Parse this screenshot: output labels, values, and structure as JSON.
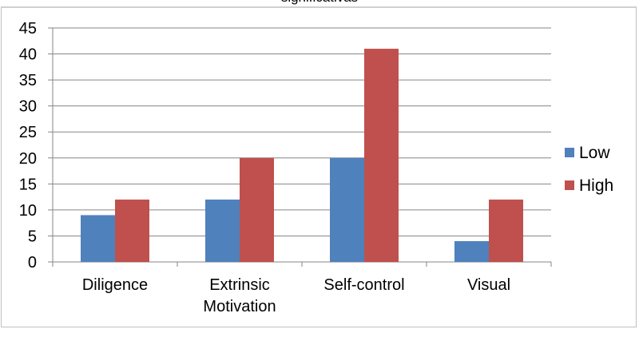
{
  "chart_data": {
    "type": "bar",
    "title": "significativas",
    "categories": [
      "Diligence",
      "Extrinsic Motivation",
      "Self-control",
      "Visual"
    ],
    "category_lines": [
      [
        "Diligence"
      ],
      [
        "Extrinsic",
        "Motivation"
      ],
      [
        "Self-control"
      ],
      [
        "Visual"
      ]
    ],
    "series": [
      {
        "name": "Low",
        "color": "#4f81bd",
        "values": [
          9,
          12,
          20,
          4
        ]
      },
      {
        "name": "High",
        "color": "#c0504d",
        "values": [
          12,
          20,
          41,
          12
        ]
      }
    ],
    "ylim": [
      0,
      45
    ],
    "yticks": [
      0,
      5,
      10,
      15,
      20,
      25,
      30,
      35,
      40,
      45
    ],
    "grid": true,
    "legend": "right"
  }
}
